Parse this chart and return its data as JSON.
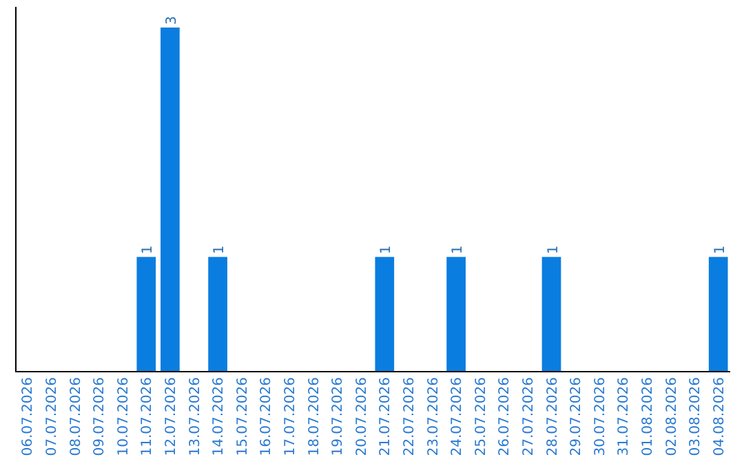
{
  "chart_data": {
    "type": "bar",
    "categories": [
      "06.07.2026",
      "07.07.2026",
      "08.07.2026",
      "09.07.2026",
      "10.07.2026",
      "11.07.2026",
      "12.07.2026",
      "13.07.2026",
      "14.07.2026",
      "15.07.2026",
      "16.07.2026",
      "17.07.2026",
      "18.07.2026",
      "19.07.2026",
      "20.07.2026",
      "21.07.2026",
      "22.07.2026",
      "23.07.2026",
      "24.07.2026",
      "25.07.2026",
      "26.07.2026",
      "27.07.2026",
      "28.07.2026",
      "29.07.2026",
      "30.07.2026",
      "31.07.2026",
      "01.08.2026",
      "02.08.2026",
      "03.08.2026",
      "04.08.2026"
    ],
    "values": [
      0,
      0,
      0,
      0,
      0,
      1,
      3,
      0,
      1,
      0,
      0,
      0,
      0,
      0,
      0,
      1,
      0,
      0,
      1,
      0,
      0,
      0,
      1,
      0,
      0,
      0,
      0,
      0,
      0,
      1
    ],
    "value_labels": [
      null,
      null,
      null,
      null,
      null,
      "1",
      "3",
      null,
      "1",
      null,
      null,
      null,
      null,
      null,
      null,
      "1",
      null,
      null,
      "1",
      null,
      null,
      null,
      "1",
      null,
      null,
      null,
      null,
      null,
      null,
      "1"
    ],
    "color": "#0a7de0"
  }
}
